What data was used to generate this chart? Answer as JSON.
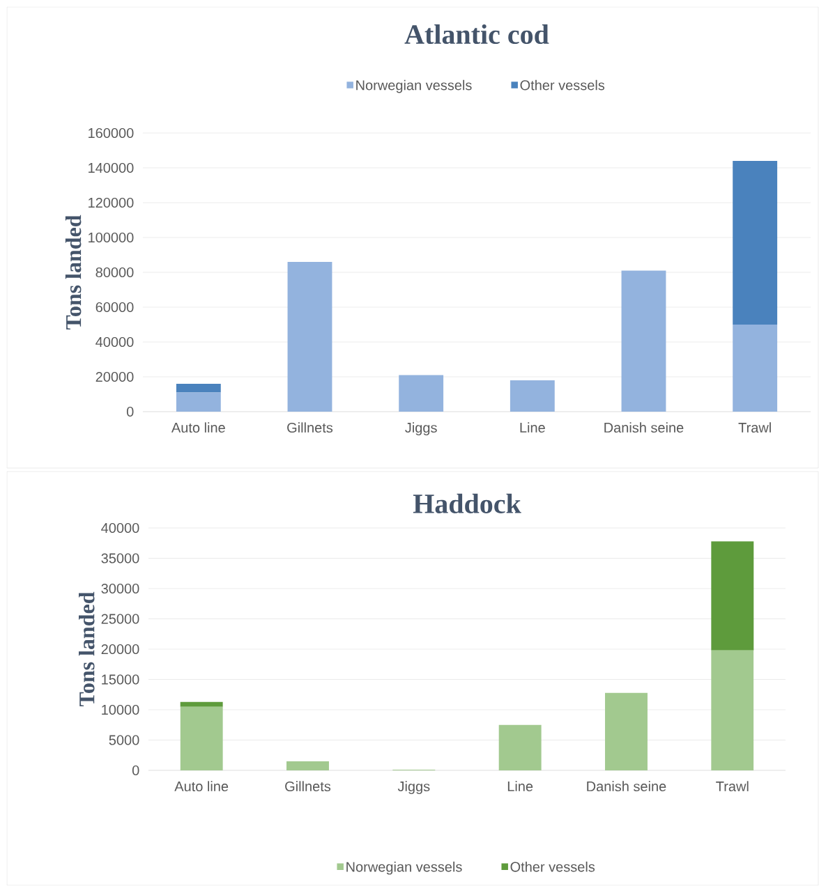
{
  "chart_data": [
    {
      "type": "bar",
      "title": "Atlantic cod",
      "ylabel": "Tons landed",
      "stacked": true,
      "grid": "y",
      "legend": "top",
      "categories": [
        "Auto line",
        "Gillnets",
        "Jiggs",
        "Line",
        "Danish seine",
        "Trawl"
      ],
      "series": [
        {
          "name": "Norwegian vessels",
          "color": "#93b3de",
          "values": [
            11000,
            86000,
            21000,
            18000,
            81000,
            50000
          ]
        },
        {
          "name": "Other vessels",
          "color": "#4a82bd",
          "values": [
            5000,
            0,
            0,
            0,
            0,
            94000
          ]
        }
      ],
      "ylim": [
        0,
        160000
      ],
      "yticks": [
        0,
        20000,
        40000,
        60000,
        80000,
        100000,
        120000,
        140000,
        160000
      ]
    },
    {
      "type": "bar",
      "title": "Haddock",
      "ylabel": "Tons landed",
      "stacked": true,
      "grid": "y",
      "legend": "bottom",
      "categories": [
        "Auto line",
        "Gillnets",
        "Jiggs",
        "Line",
        "Danish seine",
        "Trawl"
      ],
      "series": [
        {
          "name": "Norwegian vessels",
          "color": "#a2c98f",
          "values": [
            10500,
            1500,
            100,
            7500,
            12800,
            19800
          ]
        },
        {
          "name": "Other vessels",
          "color": "#5e9b3c",
          "values": [
            800,
            0,
            0,
            0,
            0,
            18000
          ]
        }
      ],
      "ylim": [
        0,
        40000
      ],
      "yticks": [
        0,
        5000,
        10000,
        15000,
        20000,
        25000,
        30000,
        35000,
        40000
      ]
    }
  ]
}
